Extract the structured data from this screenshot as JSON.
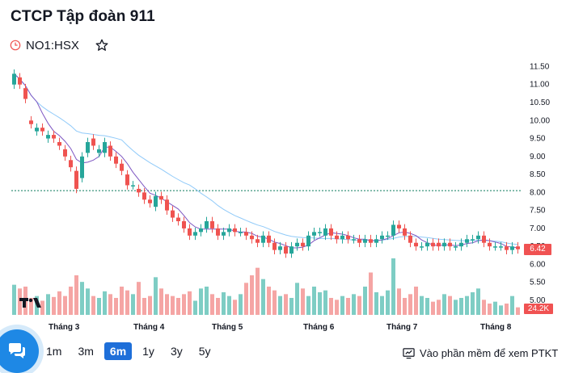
{
  "header": {
    "company_name": "CTCP Tập đoàn 911",
    "symbol": "NO1:HSX"
  },
  "icons": {
    "clock": "clock-icon",
    "favorite": "star-icon",
    "chat": "chat-icon",
    "technical_analysis": "chart-window-icon",
    "logo": "tradingview-logo-icon"
  },
  "colors": {
    "up": "#26a69a",
    "down": "#ef5350",
    "ma_short": "#7e57c2",
    "ma_long": "#90caf9",
    "accent": "#1e6fd9"
  },
  "range_selector": {
    "options": [
      "1m",
      "3m",
      "6m",
      "1y",
      "3y",
      "5y"
    ],
    "active": "6m"
  },
  "footer": {
    "ta_link_label": "Vào phần mềm để xem PTKT"
  },
  "chart_data": {
    "type": "candlestick",
    "x_tick_labels": [
      "Tháng 3",
      "Tháng 4",
      "Tháng 5",
      "Tháng 6",
      "Tháng 7",
      "Tháng 8"
    ],
    "y_tick_labels": [
      "11.50",
      "11.00",
      "10.50",
      "10.00",
      "9.50",
      "9.00",
      "8.50",
      "8.00",
      "7.50",
      "7.00",
      "6.50",
      "6.00",
      "5.50",
      "5.00"
    ],
    "ylim": [
      5.0,
      11.6
    ],
    "reference_price": 8.05,
    "last_price_label": "6.42",
    "last_volume_label": "24.2K",
    "series_close": [
      11.3,
      11.0,
      10.6,
      9.9,
      9.8,
      9.7,
      9.6,
      9.5,
      9.3,
      9.0,
      8.7,
      8.1,
      9.0,
      9.4,
      9.3,
      9.2,
      9.4,
      9.0,
      8.8,
      8.6,
      8.2,
      8.2,
      8.0,
      7.8,
      7.7,
      7.9,
      7.8,
      7.5,
      7.3,
      7.2,
      7.0,
      6.8,
      6.9,
      7.0,
      7.2,
      7.0,
      6.8,
      6.9,
      7.0,
      6.9,
      6.9,
      6.8,
      6.7,
      6.6,
      6.8,
      6.6,
      6.4,
      6.5,
      6.3,
      6.5,
      6.6,
      6.5,
      6.8,
      6.9,
      6.9,
      7.0,
      6.8,
      6.7,
      6.8,
      6.7,
      6.7,
      6.6,
      6.7,
      6.6,
      6.7,
      6.8,
      6.8,
      7.1,
      7.0,
      6.8,
      6.6,
      6.5,
      6.5,
      6.6,
      6.5,
      6.5,
      6.6,
      6.5,
      6.5,
      6.6,
      6.7,
      6.7,
      6.8,
      6.6,
      6.5,
      6.5,
      6.5,
      6.4,
      6.5,
      6.42
    ],
    "series_open": [
      11.0,
      11.2,
      10.9,
      10.0,
      9.7,
      9.8,
      9.5,
      9.6,
      9.4,
      9.2,
      8.9,
      8.6,
      8.4,
      9.1,
      9.5,
      9.1,
      9.1,
      9.3,
      9.0,
      8.8,
      8.5,
      8.2,
      8.1,
      8.0,
      7.8,
      7.6,
      7.9,
      7.8,
      7.5,
      7.3,
      7.2,
      7.0,
      6.8,
      6.9,
      7.0,
      7.2,
      7.0,
      6.8,
      6.9,
      7.0,
      6.9,
      6.9,
      6.8,
      6.7,
      6.6,
      6.8,
      6.6,
      6.4,
      6.5,
      6.3,
      6.5,
      6.6,
      6.5,
      6.8,
      6.9,
      6.8,
      7.0,
      6.8,
      6.7,
      6.8,
      6.7,
      6.7,
      6.6,
      6.7,
      6.6,
      6.7,
      6.8,
      6.8,
      7.1,
      7.0,
      6.8,
      6.6,
      6.5,
      6.5,
      6.6,
      6.6,
      6.5,
      6.6,
      6.5,
      6.5,
      6.6,
      6.7,
      6.7,
      6.8,
      6.6,
      6.5,
      6.5,
      6.5,
      6.4,
      6.5
    ],
    "volume": [
      32,
      28,
      30,
      18,
      20,
      15,
      22,
      19,
      25,
      20,
      30,
      42,
      35,
      28,
      20,
      18,
      25,
      22,
      18,
      30,
      26,
      22,
      35,
      18,
      20,
      40,
      28,
      22,
      20,
      18,
      22,
      25,
      15,
      28,
      30,
      22,
      18,
      24,
      20,
      16,
      22,
      34,
      42,
      50,
      38,
      30,
      26,
      20,
      22,
      18,
      34,
      28,
      20,
      30,
      24,
      26,
      18,
      16,
      20,
      18,
      22,
      20,
      30,
      45,
      24,
      20,
      26,
      60,
      28,
      18,
      22,
      30,
      20,
      18,
      14,
      16,
      22,
      20,
      16,
      18,
      20,
      24,
      28,
      16,
      12,
      14,
      10,
      12,
      20,
      8
    ]
  }
}
